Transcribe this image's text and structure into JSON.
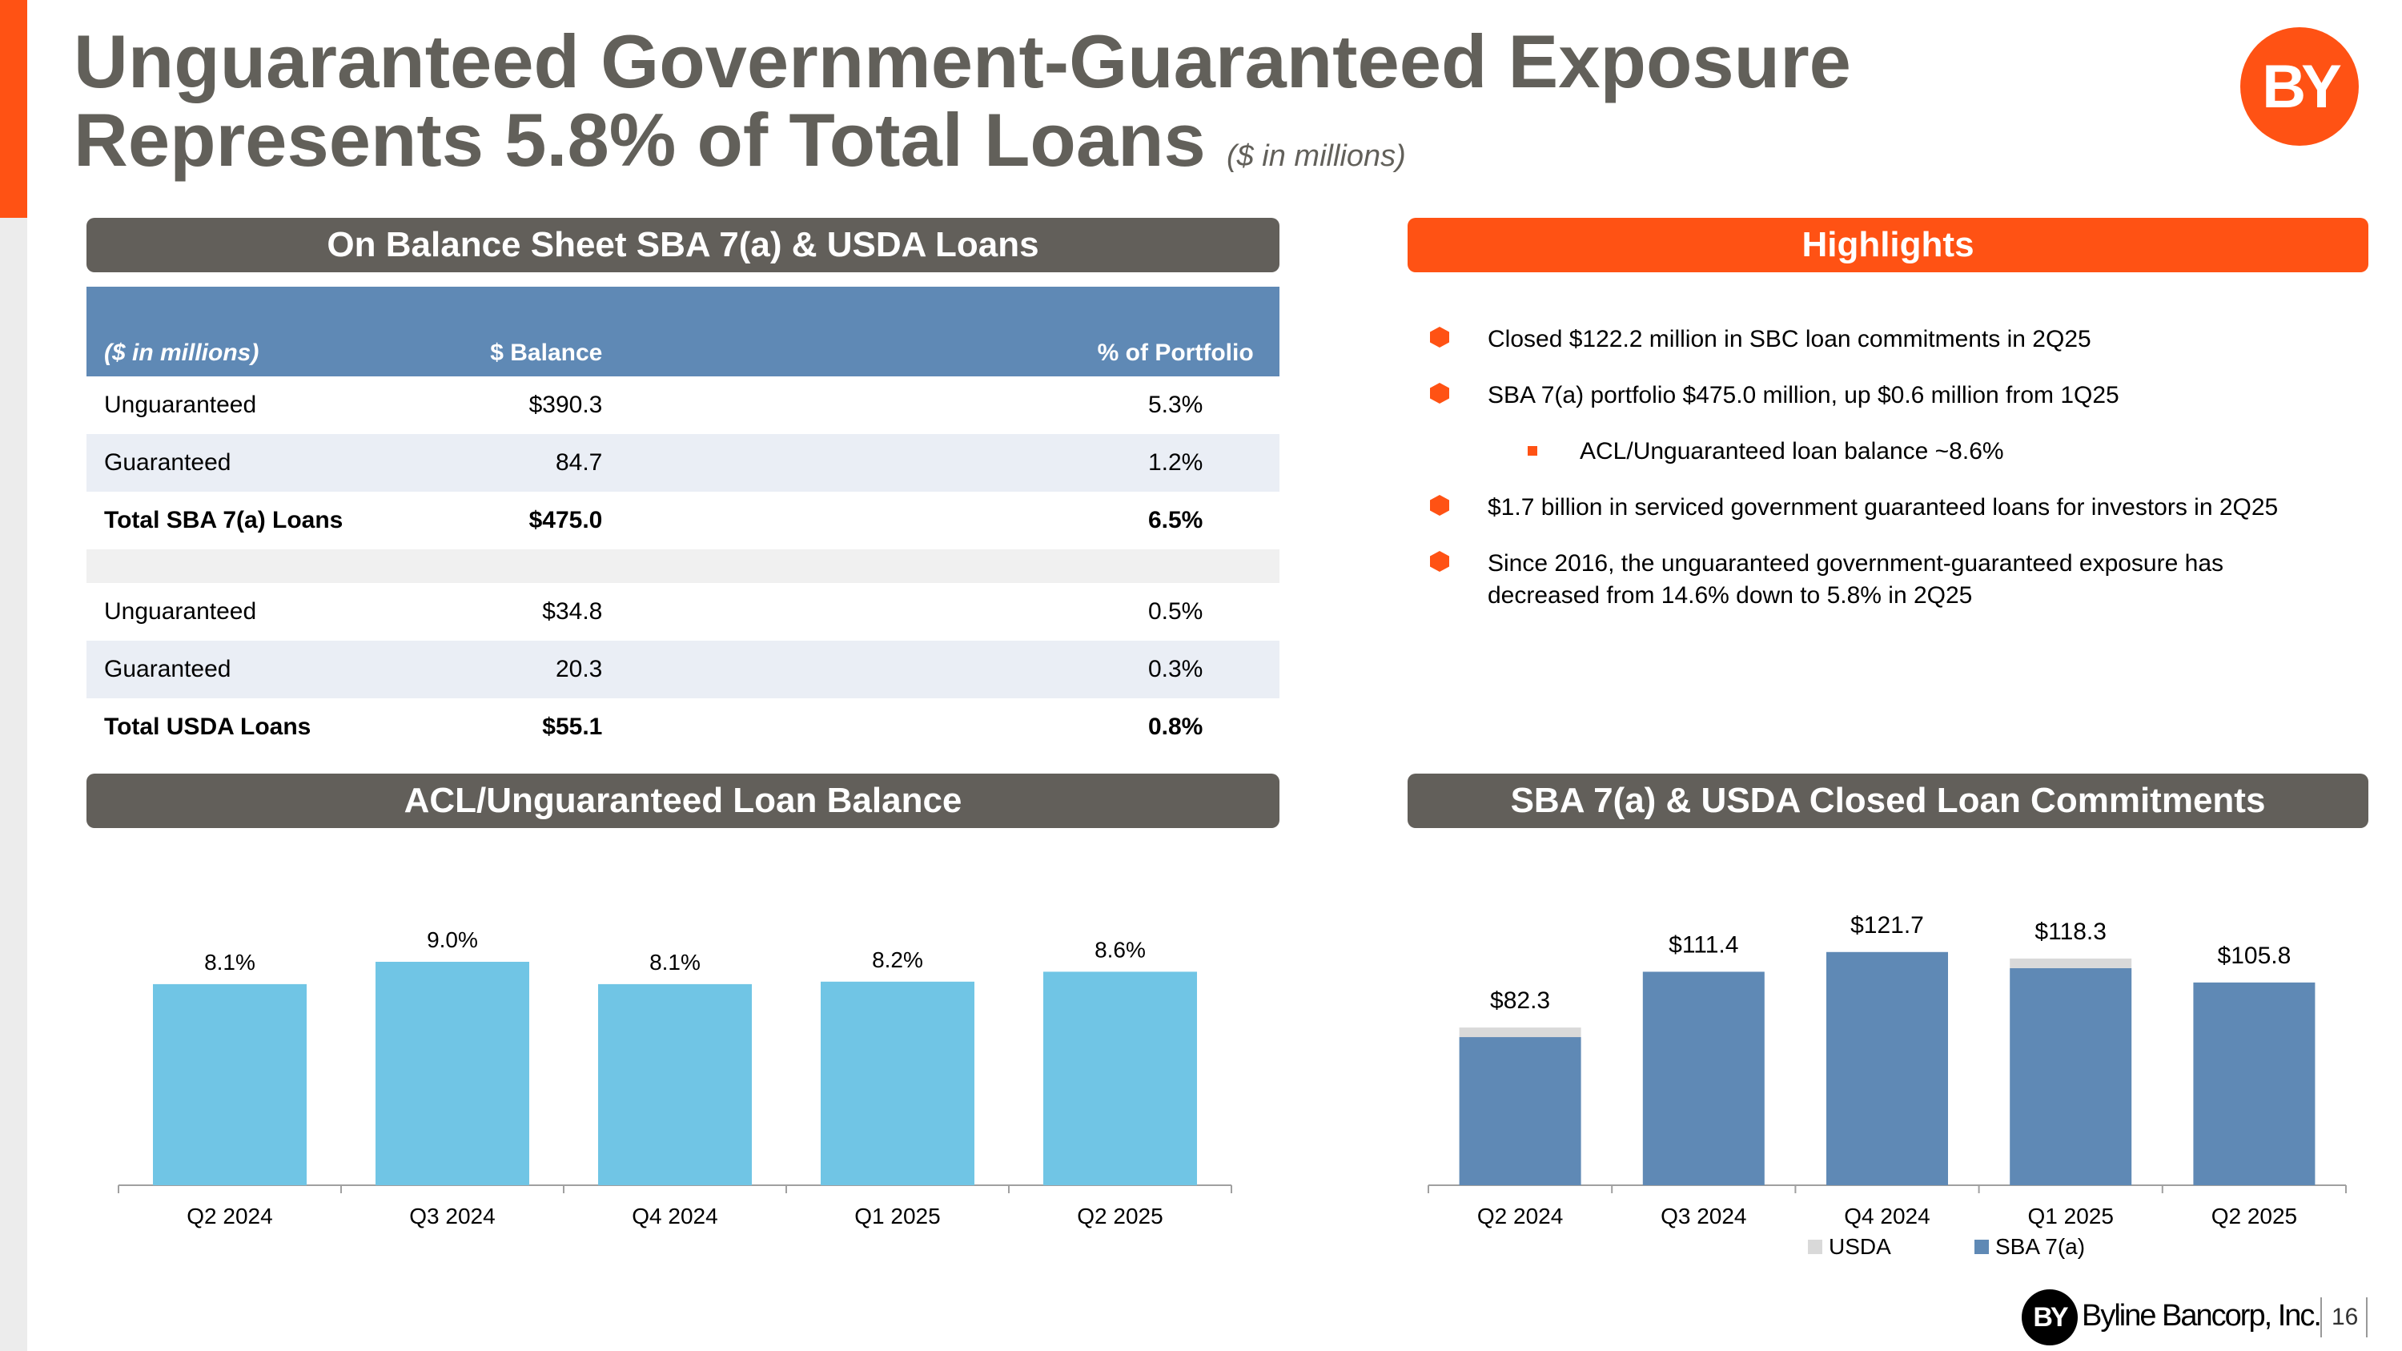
{
  "title": {
    "line1": "Unguaranteed Government-Guaranteed Exposure",
    "line2": "Represents 5.8% of Total Loans",
    "subtitle": "($ in millions)"
  },
  "logo_text": "BY",
  "sections": {
    "table_header": "On Balance Sheet SBA 7(a) & USDA Loans",
    "highlights_header": "Highlights",
    "acl_header": "ACL/Unguaranteed Loan Balance",
    "commitments_header": "SBA 7(a) & USDA Closed Loan Commitments"
  },
  "table": {
    "columns": [
      "($ in millions)",
      "$ Balance",
      "% of Portfolio"
    ],
    "rows": [
      {
        "label": "Unguaranteed",
        "balance": "$390.3",
        "pct": "5.3%"
      },
      {
        "label": "Guaranteed",
        "balance": "84.7",
        "pct": "1.2%"
      },
      {
        "label": "Total SBA 7(a) Loans",
        "balance": "$475.0",
        "pct": "6.5%"
      },
      {
        "label": "Unguaranteed",
        "balance": "$34.8",
        "pct": "0.5%"
      },
      {
        "label": "Guaranteed",
        "balance": "20.3",
        "pct": "0.3%"
      },
      {
        "label": "Total USDA Loans",
        "balance": "$55.1",
        "pct": "0.8%"
      }
    ]
  },
  "highlights": [
    "Closed $122.2 million in SBC loan commitments in 2Q25",
    "SBA 7(a) portfolio $475.0 million, up $0.6 million from 1Q25",
    "ACL/Unguaranteed loan balance ~8.6%",
    "$1.7 billion in serviced government guaranteed loans for investors in 2Q25",
    "Since 2016, the unguaranteed government-guaranteed exposure has decreased from 14.6% down to 5.8% in 2Q25"
  ],
  "colors": {
    "orange": "#ff5214",
    "gray_bar": "#625f5a",
    "table_header": "#5f89b5",
    "acl_bar": "#70c5e5",
    "sba_bar": "#5f89b5",
    "usda_bar": "#d9d9d9"
  },
  "chart_data": [
    {
      "type": "bar",
      "title": "ACL/Unguaranteed Loan Balance",
      "categories": [
        "Q2 2024",
        "Q3 2024",
        "Q4 2024",
        "Q1 2025",
        "Q2 2025"
      ],
      "values": [
        8.1,
        9.0,
        8.1,
        8.2,
        8.6
      ],
      "labels": [
        "8.1%",
        "9.0%",
        "8.1%",
        "8.2%",
        "8.6%"
      ],
      "ylim": [
        0,
        10
      ]
    },
    {
      "type": "bar",
      "stacked": true,
      "title": "SBA 7(a) & USDA Closed Loan Commitments",
      "categories": [
        "Q2 2024",
        "Q3 2024",
        "Q4 2024",
        "Q1 2025",
        "Q2 2025"
      ],
      "series": [
        {
          "name": "SBA 7(a)",
          "values": [
            77.3,
            111.4,
            121.7,
            113.3,
            105.8
          ]
        },
        {
          "name": "USDA",
          "values": [
            5.0,
            0,
            0,
            5.0,
            0
          ]
        }
      ],
      "totals": [
        "$82.3",
        "$111.4",
        "$121.7",
        "$118.3",
        "$105.8"
      ],
      "legend": [
        "USDA",
        "SBA 7(a)"
      ],
      "legend_position": "bottom",
      "ylim": [
        0,
        140
      ]
    }
  ],
  "footer": {
    "logo_text": "BY",
    "company": "Byline Bancorp, Inc.",
    "page": "16"
  }
}
